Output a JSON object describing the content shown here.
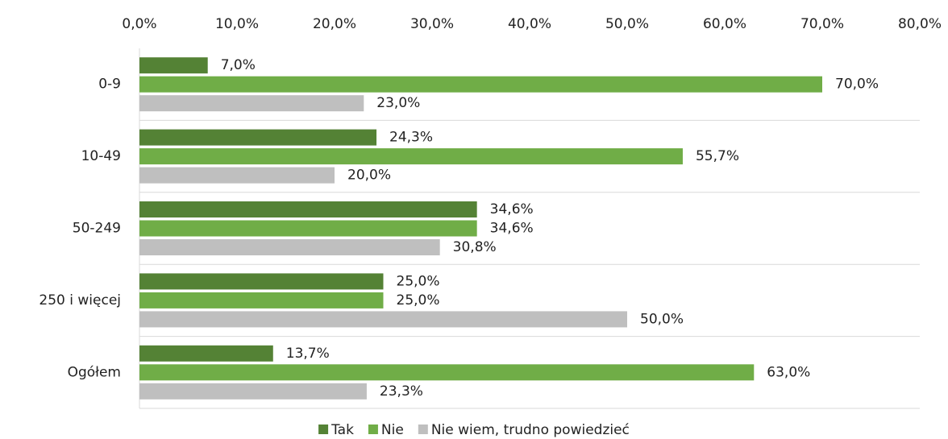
{
  "chart_data": {
    "type": "bar",
    "orientation": "horizontal",
    "categories": [
      "0-9",
      "10-49",
      "50-249",
      "250 i więcej",
      "Ogółem"
    ],
    "series": [
      {
        "name": "Tak",
        "color": "#548235",
        "values": [
          7.0,
          24.3,
          34.6,
          25.0,
          13.7
        ],
        "value_labels": [
          "7,0%",
          "24,3%",
          "34,6%",
          "25,0%",
          "13,7%"
        ]
      },
      {
        "name": "Nie",
        "color": "#70ad47",
        "values": [
          70.0,
          55.7,
          34.6,
          25.0,
          63.0
        ],
        "value_labels": [
          "70,0%",
          "55,7%",
          "34,6%",
          "25,0%",
          "63,0%"
        ]
      },
      {
        "name": "Nie wiem, trudno powiedzieć",
        "color": "#bfbfbf",
        "values": [
          23.0,
          20.0,
          30.8,
          50.0,
          23.3
        ],
        "value_labels": [
          "23,0%",
          "20,0%",
          "30,8%",
          "50,0%",
          "23,3%"
        ]
      }
    ],
    "xlim": [
      0,
      80
    ],
    "xticks": [
      {
        "value": 0,
        "label": "0,0%"
      },
      {
        "value": 10,
        "label": "10,0%"
      },
      {
        "value": 20,
        "label": "20,0%"
      },
      {
        "value": 30,
        "label": "30,0%"
      },
      {
        "value": 40,
        "label": "40,0%"
      },
      {
        "value": 50,
        "label": "50,0%"
      },
      {
        "value": 60,
        "label": "60,0%"
      },
      {
        "value": 70,
        "label": "70,0%"
      },
      {
        "value": 80,
        "label": "80,0%"
      }
    ],
    "legend": "bottom"
  }
}
